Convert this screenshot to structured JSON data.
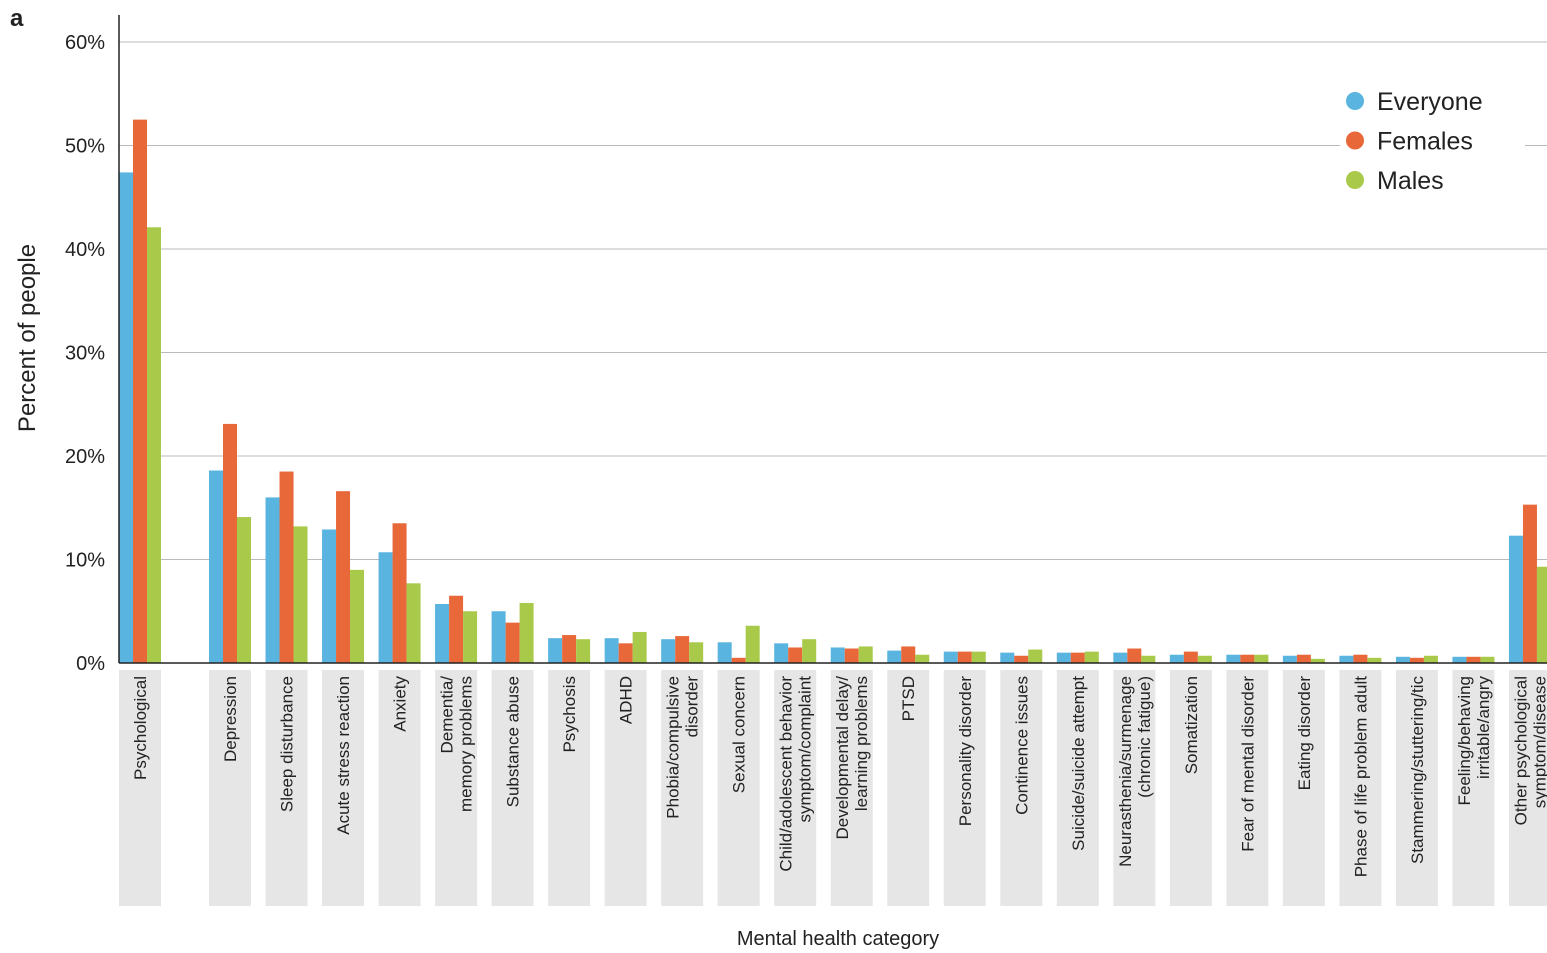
{
  "chart_data": {
    "type": "bar",
    "panel_label": "a",
    "y_label": "Percent of people",
    "x_label": "Mental health category",
    "categories": [
      "Psychological",
      "Depression",
      "Sleep disturbance",
      "Acute stress reaction",
      "Anxiety",
      "Dementia/\nmemory problems",
      "Substance abuse",
      "Psychosis",
      "ADHD",
      "Phobia/compulsive\ndisorder",
      "Sexual concern",
      "Child/adolescent behavior\nsymptom/complaint",
      "Developmental delay/\nlearning problems",
      "PTSD",
      "Personality disorder",
      "Continence issues",
      "Suicide/suicide attempt",
      "Neurasthenia/surmenage\n(chronic fatigue)",
      "Somatization",
      "Fear of mental disorder",
      "Eating disorder",
      "Phase of life problem adult",
      "Stammering/stuttering/tic",
      "Feeling/behaving\nirritable/angry",
      "Other psychological\nsymptom/disease"
    ],
    "series": [
      {
        "name": "Everyone",
        "color": "#5ab4e0",
        "values": [
          47.4,
          18.6,
          16.0,
          12.9,
          10.7,
          5.7,
          5.0,
          2.4,
          2.4,
          2.3,
          2.0,
          1.9,
          1.5,
          1.2,
          1.1,
          1.0,
          1.0,
          1.0,
          0.8,
          0.8,
          0.7,
          0.7,
          0.6,
          0.6,
          12.3
        ]
      },
      {
        "name": "Females",
        "color": "#e8683a",
        "values": [
          52.5,
          23.1,
          18.5,
          16.6,
          13.5,
          6.5,
          3.9,
          2.7,
          1.9,
          2.6,
          0.5,
          1.5,
          1.4,
          1.6,
          1.1,
          0.7,
          1.0,
          1.4,
          1.1,
          0.8,
          0.8,
          0.8,
          0.5,
          0.6,
          15.3
        ]
      },
      {
        "name": "Males",
        "color": "#a8c94a",
        "values": [
          42.1,
          14.1,
          13.2,
          9.0,
          7.7,
          5.0,
          5.8,
          2.3,
          3.0,
          2.0,
          3.6,
          2.3,
          1.6,
          0.8,
          1.1,
          1.3,
          1.1,
          0.7,
          0.7,
          0.8,
          0.4,
          0.5,
          0.7,
          0.6,
          9.3
        ]
      }
    ],
    "ylim": [
      0,
      60
    ],
    "yticks": [
      {
        "value": 0,
        "label": "0%"
      },
      {
        "value": 10,
        "label": "10%"
      },
      {
        "value": 20,
        "label": "20%"
      },
      {
        "value": 30,
        "label": "30%"
      },
      {
        "value": 40,
        "label": "40%"
      },
      {
        "value": 50,
        "label": "50%"
      },
      {
        "value": 60,
        "label": "60%"
      }
    ],
    "grid": true,
    "legend": "top-right"
  }
}
